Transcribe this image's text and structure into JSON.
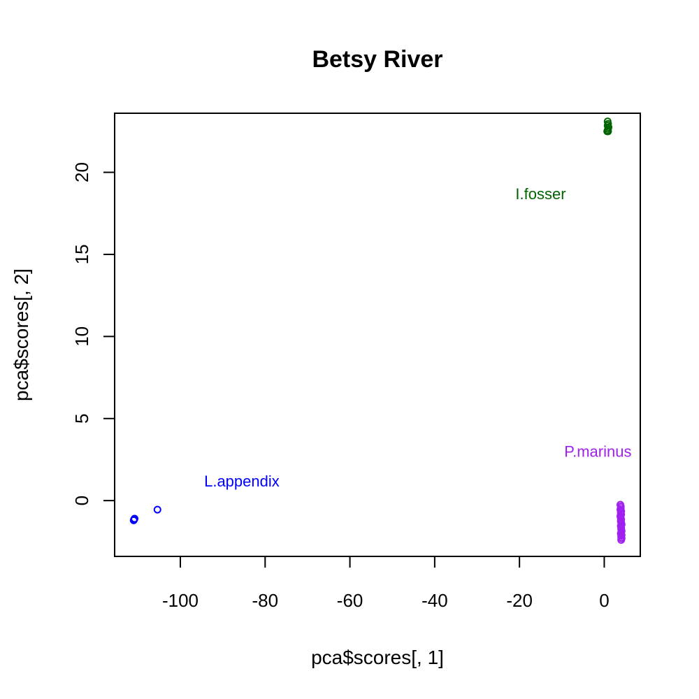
{
  "chart_data": {
    "type": "scatter",
    "title": "Betsy River",
    "xlabel": "pca$scores[, 1]",
    "ylabel": "pca$scores[, 2]",
    "xlim": [
      -115.5,
      8.5
    ],
    "ylim": [
      -3.4,
      23.6
    ],
    "x_ticks": [
      -100,
      -80,
      -60,
      -40,
      -20,
      0
    ],
    "x_tick_labels": [
      "-100",
      "-80",
      "-60",
      "-40",
      "-20",
      "0"
    ],
    "y_ticks": [
      0,
      5,
      10,
      15,
      20
    ],
    "y_tick_labels": [
      "0",
      "5",
      "10",
      "15",
      "20"
    ],
    "grid": false,
    "series": [
      {
        "color": "#0000ff",
        "x": [
          -110.9,
          -111.0,
          -110.8,
          -105.4
        ],
        "y": [
          -1.15,
          -1.2,
          -1.1,
          -0.55
        ]
      },
      {
        "color": "#006400",
        "x": [
          0.8,
          0.9,
          0.8,
          1.0,
          0.9,
          0.8,
          0.9,
          0.7
        ],
        "y": [
          23.1,
          22.95,
          22.85,
          22.75,
          22.65,
          22.55,
          22.5,
          22.5
        ]
      },
      {
        "color": "#a020f0",
        "x": [
          3.8,
          3.9,
          3.9,
          3.8,
          4.0,
          3.9,
          4.0,
          3.8,
          3.9,
          4.0,
          3.9,
          4.0,
          4.1,
          3.9,
          4.0,
          4.0,
          4.1,
          4.0,
          3.9,
          4.0,
          4.1,
          4.0,
          4.0,
          4.1,
          4.0
        ],
        "y": [
          -0.25,
          -0.35,
          -0.45,
          -0.55,
          -0.65,
          -0.75,
          -0.85,
          -0.95,
          -1.05,
          -1.15,
          -1.25,
          -1.35,
          -1.45,
          -1.55,
          -1.65,
          -1.75,
          -1.85,
          -1.95,
          -2.0,
          -2.05,
          -2.1,
          -2.15,
          -2.25,
          -2.3,
          -2.4
        ]
      }
    ],
    "annotations": [
      {
        "text": "L.appendix",
        "x": -85.5,
        "y": 1.2,
        "color": "#0000ff"
      },
      {
        "text": "I.fosser",
        "x": -15,
        "y": 18.7,
        "color": "#006400"
      },
      {
        "text": "P.marinus",
        "x": -1.5,
        "y": 3.0,
        "color": "#a020f0"
      }
    ]
  }
}
